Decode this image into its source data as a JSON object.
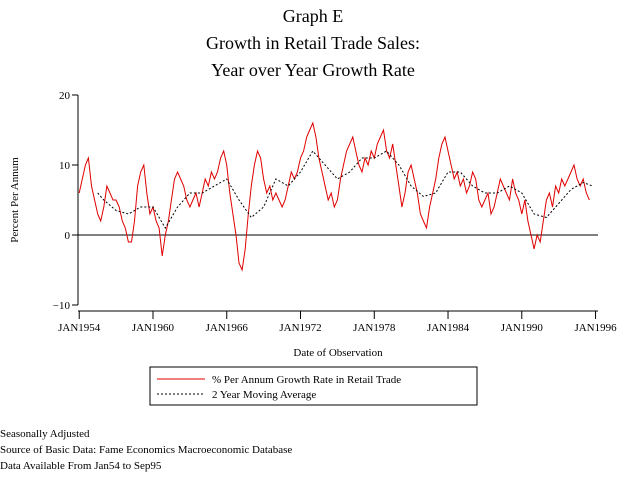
{
  "chart_data": {
    "type": "line",
    "title": [
      "Graph E",
      "Growth in Retail Trade Sales:",
      "Year over Year Growth Rate"
    ],
    "xlabel": "Date of Observation",
    "ylabel": "Percent Per Annum",
    "xlim": [
      1953.9,
      1996.2
    ],
    "ylim": [
      -10,
      20
    ],
    "xticks": [
      {
        "value": 1954,
        "label": "JAN1954"
      },
      {
        "value": 1960,
        "label": "JAN1960"
      },
      {
        "value": 1966,
        "label": "JAN1966"
      },
      {
        "value": 1972,
        "label": "JAN1972"
      },
      {
        "value": 1978,
        "label": "JAN1978"
      },
      {
        "value": 1984,
        "label": "JAN1984"
      },
      {
        "value": 1990,
        "label": "JAN1990"
      },
      {
        "value": 1996,
        "label": "JAN1996"
      }
    ],
    "yticks": [
      {
        "value": -10,
        "label": "−10"
      },
      0,
      10,
      20
    ],
    "reference_line": 0,
    "series": [
      {
        "name": "% Per Annum Growth Rate in Retail Trade",
        "color": "#e00000",
        "dash": false,
        "x": [
          1954,
          1954.25,
          1954.5,
          1954.75,
          1955,
          1955.25,
          1955.5,
          1955.75,
          1956,
          1956.25,
          1956.5,
          1956.75,
          1957,
          1957.25,
          1957.5,
          1957.75,
          1958,
          1958.25,
          1958.5,
          1958.75,
          1959,
          1959.25,
          1959.5,
          1959.75,
          1960,
          1960.25,
          1960.5,
          1960.75,
          1961,
          1961.25,
          1961.5,
          1961.75,
          1962,
          1962.25,
          1962.5,
          1962.75,
          1963,
          1963.25,
          1963.5,
          1963.75,
          1964,
          1964.25,
          1964.5,
          1964.75,
          1965,
          1965.25,
          1965.5,
          1965.75,
          1966,
          1966.25,
          1966.5,
          1966.75,
          1967,
          1967.25,
          1967.5,
          1967.75,
          1968,
          1968.25,
          1968.5,
          1968.75,
          1969,
          1969.25,
          1969.5,
          1969.75,
          1970,
          1970.25,
          1970.5,
          1970.75,
          1971,
          1971.25,
          1971.5,
          1971.75,
          1972,
          1972.25,
          1972.5,
          1972.75,
          1973,
          1973.25,
          1973.5,
          1973.75,
          1974,
          1974.25,
          1974.5,
          1974.75,
          1975,
          1975.25,
          1975.5,
          1975.75,
          1976,
          1976.25,
          1976.5,
          1976.75,
          1977,
          1977.25,
          1977.5,
          1977.75,
          1978,
          1978.25,
          1978.5,
          1978.75,
          1979,
          1979.25,
          1979.5,
          1979.75,
          1980,
          1980.25,
          1980.5,
          1980.75,
          1981,
          1981.25,
          1981.5,
          1981.75,
          1982,
          1982.25,
          1982.5,
          1982.75,
          1983,
          1983.25,
          1983.5,
          1983.75,
          1984,
          1984.25,
          1984.5,
          1984.75,
          1985,
          1985.25,
          1985.5,
          1985.75,
          1986,
          1986.25,
          1986.5,
          1986.75,
          1987,
          1987.25,
          1987.5,
          1987.75,
          1988,
          1988.25,
          1988.5,
          1988.75,
          1989,
          1989.25,
          1989.5,
          1989.75,
          1990,
          1990.25,
          1990.5,
          1990.75,
          1991,
          1991.25,
          1991.5,
          1991.75,
          1992,
          1992.25,
          1992.5,
          1992.75,
          1993,
          1993.25,
          1993.5,
          1993.75,
          1994,
          1994.25,
          1994.5,
          1994.75,
          1995,
          1995.25,
          1995.5
        ],
        "values": [
          6,
          8,
          10,
          11,
          7,
          5,
          3,
          2,
          4,
          7,
          6,
          5,
          5,
          4,
          2,
          1,
          -1,
          -1,
          2,
          7,
          9,
          10,
          6,
          3,
          4,
          2,
          1,
          -3,
          0,
          2,
          5,
          8,
          9,
          8,
          7,
          5,
          4,
          5,
          6,
          4,
          6,
          8,
          7,
          9,
          8,
          9,
          11,
          12,
          10,
          6,
          3,
          0,
          -4,
          -5,
          -2,
          3,
          7,
          10,
          12,
          11,
          8,
          6,
          7,
          5,
          6,
          5,
          4,
          5,
          7,
          9,
          8,
          9,
          11,
          12,
          14,
          15,
          16,
          14,
          11,
          9,
          7,
          5,
          6,
          4,
          5,
          8,
          10,
          12,
          13,
          14,
          12,
          10,
          9,
          11,
          10,
          12,
          11,
          13,
          14,
          15,
          12,
          11,
          13,
          10,
          7,
          4,
          6,
          9,
          10,
          8,
          6,
          3,
          2,
          1,
          4,
          6,
          8,
          11,
          13,
          14,
          12,
          10,
          8,
          9,
          7,
          8,
          6,
          7,
          9,
          8,
          5,
          4,
          5,
          6,
          3,
          4,
          6,
          8,
          7,
          6,
          5,
          8,
          6,
          5,
          3,
          5,
          2,
          0,
          -2,
          0,
          -1,
          2,
          5,
          6,
          4,
          7,
          6,
          8,
          7,
          8,
          9,
          10,
          8,
          7,
          8,
          6,
          5
        ]
      },
      {
        "name": "2 Year Moving Average",
        "color": "#000000",
        "dash": true,
        "x": [
          1955.5,
          1956,
          1957,
          1958,
          1959,
          1960,
          1961,
          1962,
          1963,
          1964,
          1965,
          1966,
          1967,
          1968,
          1969,
          1970,
          1971,
          1972,
          1973,
          1974,
          1975,
          1976,
          1977,
          1978,
          1979,
          1980,
          1981,
          1982,
          1983,
          1984,
          1985,
          1986,
          1987,
          1988,
          1989,
          1990,
          1991,
          1992,
          1993,
          1994,
          1995,
          1995.75
        ],
        "values": [
          6,
          5,
          3.5,
          3,
          4,
          4,
          1,
          4,
          6,
          6,
          7,
          8,
          5,
          2.5,
          4,
          8,
          7,
          9,
          12,
          10,
          8,
          9,
          11,
          11,
          12,
          10,
          7,
          5.5,
          6,
          9,
          9,
          7,
          6,
          6,
          7,
          6,
          3,
          2.5,
          4.5,
          6.5,
          7.5,
          7
        ]
      }
    ],
    "notes": [
      "Seasonally Adjusted",
      "Source of Basic Data: Fame Economics Macroeconomic Database",
      "Data Available From Jan54 to Sep95"
    ]
  }
}
